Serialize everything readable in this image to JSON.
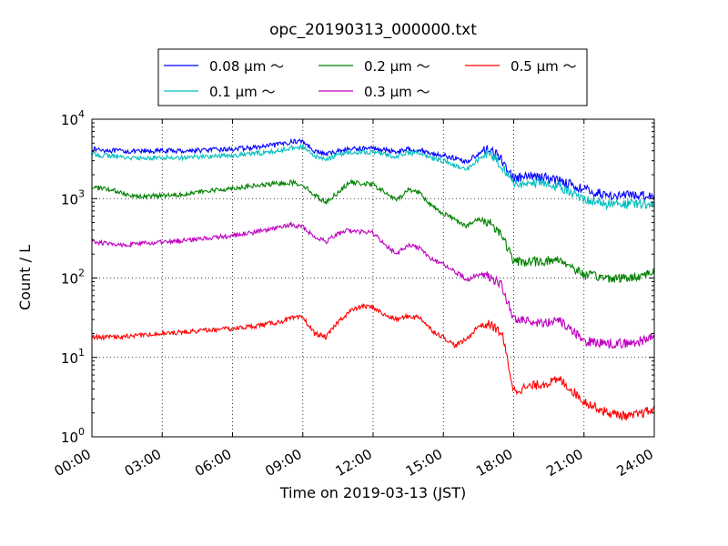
{
  "chart_data": {
    "type": "line",
    "title": "opc_20190313_000000.txt",
    "xlabel": "Time on 2019-03-13 (JST)",
    "ylabel": "Count / L",
    "yscale": "log",
    "ylim": [
      1,
      10000
    ],
    "y_ticks": [
      {
        "base": "10",
        "exp": "0"
      },
      {
        "base": "10",
        "exp": "1"
      },
      {
        "base": "10",
        "exp": "2"
      },
      {
        "base": "10",
        "exp": "3"
      },
      {
        "base": "10",
        "exp": "4"
      }
    ],
    "x_ticks": [
      "00:00",
      "03:00",
      "06:00",
      "09:00",
      "12:00",
      "15:00",
      "18:00",
      "21:00",
      "24:00"
    ],
    "grid": true,
    "legend_placement": "top-center",
    "x": [
      "00:00",
      "01:00",
      "02:00",
      "03:00",
      "04:00",
      "05:00",
      "06:00",
      "07:00",
      "08:00",
      "08:30",
      "09:00",
      "09:30",
      "10:00",
      "10:30",
      "11:00",
      "11:30",
      "12:00",
      "12:30",
      "13:00",
      "13:30",
      "14:00",
      "14:30",
      "15:00",
      "15:30",
      "16:00",
      "16:30",
      "17:00",
      "17:30",
      "18:00",
      "19:00",
      "20:00",
      "21:00",
      "22:00",
      "23:00",
      "24:00"
    ],
    "series": [
      {
        "name": "0.08 µm ～",
        "color": "#0000ff",
        "values": [
          4200,
          4000,
          3900,
          4000,
          4000,
          4100,
          4200,
          4400,
          4800,
          5200,
          5300,
          4000,
          3600,
          4000,
          4200,
          4300,
          4300,
          4100,
          3900,
          4200,
          4100,
          3700,
          3500,
          3200,
          2900,
          3700,
          4300,
          3000,
          1800,
          1900,
          1700,
          1300,
          1100,
          1100,
          1100
        ]
      },
      {
        "name": "0.1 µm ～",
        "color": "#00bfbf",
        "values": [
          3600,
          3400,
          3200,
          3300,
          3300,
          3400,
          3500,
          3700,
          4000,
          4400,
          4500,
          3400,
          3100,
          3600,
          3800,
          3900,
          3800,
          3600,
          3400,
          3800,
          3700,
          3200,
          3000,
          2600,
          2300,
          3100,
          3700,
          2600,
          1500,
          1600,
          1400,
          1000,
          850,
          850,
          850
        ]
      },
      {
        "name": "0.2 µm ～",
        "color": "#008000",
        "values": [
          1400,
          1250,
          1050,
          1100,
          1150,
          1250,
          1350,
          1450,
          1550,
          1600,
          1500,
          1100,
          900,
          1200,
          1600,
          1550,
          1500,
          1200,
          950,
          1300,
          1200,
          800,
          650,
          550,
          450,
          550,
          500,
          350,
          160,
          160,
          170,
          110,
          100,
          100,
          120
        ]
      },
      {
        "name": "0.3 µm ～",
        "color": "#bf00bf",
        "values": [
          290,
          260,
          270,
          280,
          300,
          320,
          340,
          380,
          430,
          470,
          440,
          330,
          290,
          360,
          400,
          380,
          370,
          260,
          200,
          260,
          240,
          170,
          150,
          120,
          95,
          110,
          105,
          80,
          30,
          28,
          28,
          16,
          15,
          15,
          18
        ]
      },
      {
        "name": "0.5 µm ～",
        "color": "#ff0000",
        "values": [
          18,
          18,
          19,
          20,
          21,
          22,
          23,
          25,
          28,
          31,
          32,
          20,
          18,
          28,
          38,
          44,
          43,
          34,
          30,
          33,
          32,
          22,
          18,
          14,
          17,
          25,
          26,
          20,
          3.8,
          4.5,
          5.2,
          2.8,
          2.0,
          1.8,
          2.2
        ]
      }
    ]
  }
}
